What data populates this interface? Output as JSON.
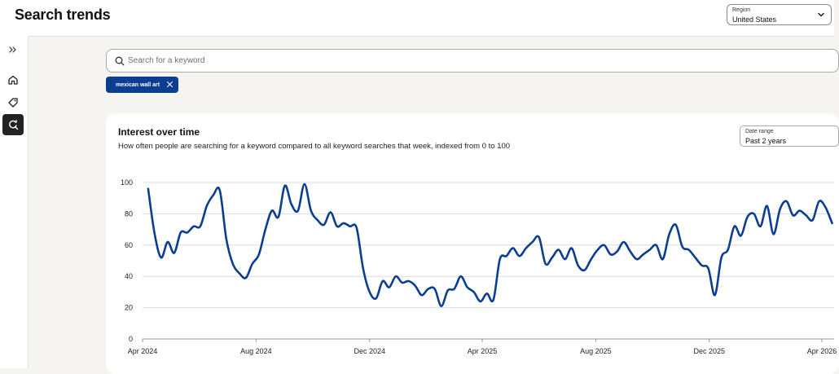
{
  "app": {
    "title": "Search trends"
  },
  "region": {
    "label": "Region",
    "value": "United States"
  },
  "sidebar": {
    "items": [
      {
        "name": "expand",
        "icon": "double-chevron-right-icon"
      },
      {
        "name": "home",
        "icon": "home-icon"
      },
      {
        "name": "tags",
        "icon": "tag-icon"
      },
      {
        "name": "search-trends",
        "icon": "search-refresh-icon",
        "active": true
      }
    ]
  },
  "search": {
    "placeholder": "Search for a keyword"
  },
  "chips": [
    {
      "label": "mexican wall art"
    }
  ],
  "card": {
    "title": "Interest over time",
    "subtitle": "How often people are searching for a keyword compared to all keyword searches that week, indexed from 0 to 100",
    "date_range": {
      "label": "Date range",
      "value": "Past 2 years"
    }
  },
  "colors": {
    "line": "#0b3d91",
    "chip": "#0b3d91",
    "accent_dark": "#222222"
  },
  "chart_data": {
    "type": "line",
    "title": "Interest over time",
    "ylim": [
      0,
      100
    ],
    "yticks": [
      0,
      20,
      40,
      60,
      80,
      100
    ],
    "xticks": [
      "Apr 2024",
      "Aug 2024",
      "Dec 2024",
      "Apr 2025",
      "Aug 2025",
      "Dec 2025",
      "Apr 2026"
    ],
    "grid": true,
    "series": [
      {
        "name": "mexican wall art",
        "x": [
          "2024-04-07",
          "2024-04-14",
          "2024-04-21",
          "2024-04-28",
          "2024-05-05",
          "2024-05-12",
          "2024-05-19",
          "2024-05-26",
          "2024-06-02",
          "2024-06-09",
          "2024-06-16",
          "2024-06-23",
          "2024-06-30",
          "2024-07-07",
          "2024-07-14",
          "2024-07-21",
          "2024-07-28",
          "2024-08-04",
          "2024-08-11",
          "2024-08-18",
          "2024-08-25",
          "2024-09-01",
          "2024-09-08",
          "2024-09-15",
          "2024-09-22",
          "2024-09-29",
          "2024-10-06",
          "2024-10-13",
          "2024-10-20",
          "2024-10-27",
          "2024-11-03",
          "2024-11-10",
          "2024-11-17",
          "2024-11-24",
          "2024-12-01",
          "2024-12-08",
          "2024-12-15",
          "2024-12-22",
          "2024-12-29",
          "2025-01-05",
          "2025-01-12",
          "2025-01-19",
          "2025-01-26",
          "2025-02-02",
          "2025-02-09",
          "2025-02-16",
          "2025-02-23",
          "2025-03-02",
          "2025-03-09",
          "2025-03-16",
          "2025-03-23",
          "2025-03-30",
          "2025-04-06",
          "2025-04-13",
          "2025-04-20",
          "2025-04-27",
          "2025-05-04",
          "2025-05-11",
          "2025-05-18",
          "2025-05-25",
          "2025-06-01",
          "2025-06-08",
          "2025-06-15",
          "2025-06-22",
          "2025-06-29",
          "2025-07-06",
          "2025-07-13",
          "2025-07-20",
          "2025-07-27",
          "2025-08-03",
          "2025-08-10",
          "2025-08-17",
          "2025-08-24",
          "2025-08-31",
          "2025-09-07",
          "2025-09-14",
          "2025-09-21",
          "2025-09-28",
          "2025-10-05",
          "2025-10-12",
          "2025-10-19",
          "2025-10-26",
          "2025-11-02",
          "2025-11-09",
          "2025-11-16",
          "2025-11-23",
          "2025-11-30",
          "2025-12-07",
          "2025-12-14",
          "2025-12-21",
          "2025-12-28",
          "2026-01-04",
          "2026-01-11",
          "2026-01-18",
          "2026-01-25",
          "2026-02-01",
          "2026-02-08",
          "2026-02-15",
          "2026-02-22",
          "2026-03-01",
          "2026-03-08",
          "2026-03-15",
          "2026-03-22",
          "2026-03-29",
          "2026-04-05",
          "2026-04-12"
        ],
        "values": [
          96,
          67,
          52,
          62,
          55,
          68,
          68,
          72,
          72,
          85,
          92,
          95,
          64,
          48,
          42,
          39,
          48,
          54,
          70,
          82,
          78,
          98,
          86,
          82,
          99,
          82,
          76,
          73,
          81,
          72,
          74,
          72,
          71,
          45,
          30,
          26,
          37,
          33,
          40,
          36,
          37,
          34,
          28,
          32,
          32,
          21,
          31,
          32,
          40,
          33,
          30,
          24,
          29,
          25,
          51,
          53,
          58,
          53,
          58,
          62,
          65,
          48,
          52,
          57,
          51,
          58,
          47,
          44,
          51,
          57,
          60,
          54,
          56,
          62,
          56,
          51,
          54,
          57,
          60,
          51,
          67,
          73,
          59,
          57,
          52,
          47,
          45,
          28,
          52,
          57,
          72,
          66,
          78,
          80,
          72,
          85,
          67,
          83,
          88,
          79,
          82,
          79,
          76,
          88,
          84,
          74
        ]
      }
    ]
  }
}
